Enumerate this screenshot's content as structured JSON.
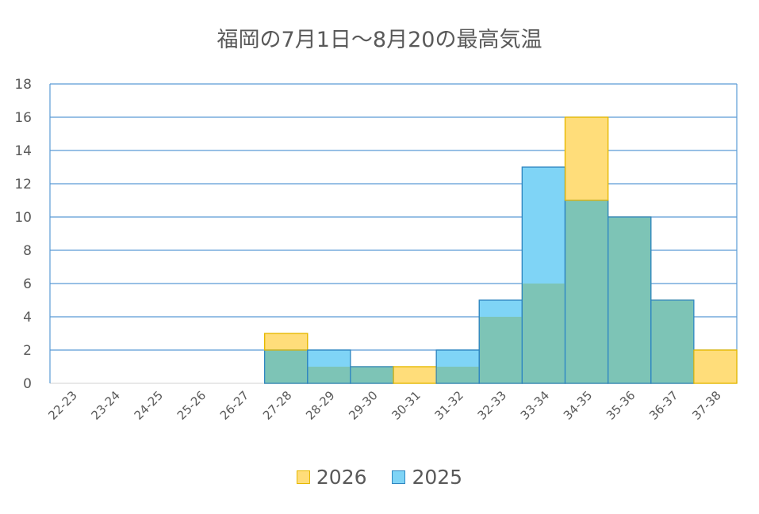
{
  "chart_data": {
    "type": "bar",
    "title": "福岡の7月1日〜8月20の最高気温",
    "categories": [
      "22-23",
      "23-24",
      "24-25",
      "25-26",
      "26-27",
      "27-28",
      "28-29",
      "29-30",
      "30-31",
      "31-32",
      "32-33",
      "33-34",
      "34-35",
      "35-36",
      "36-37",
      "37-38"
    ],
    "series": [
      {
        "name": "2026",
        "values": [
          0,
          0,
          0,
          0,
          0,
          3,
          1,
          1,
          1,
          1,
          4,
          6,
          16,
          10,
          5,
          2
        ],
        "color": "#FFDD7A",
        "stroke": "#E6B800"
      },
      {
        "name": "2025",
        "values": [
          0,
          0,
          0,
          0,
          0,
          2,
          2,
          1,
          0,
          2,
          5,
          13,
          11,
          10,
          5,
          0
        ],
        "color": "#7FD4F6",
        "stroke": "#2E86C1"
      }
    ],
    "overlap_color": "#7DC4B6",
    "ylim": [
      0,
      18
    ],
    "yticks": [
      0,
      2,
      4,
      6,
      8,
      10,
      12,
      14,
      16,
      18
    ],
    "grid": true,
    "legend_position": "bottom"
  }
}
